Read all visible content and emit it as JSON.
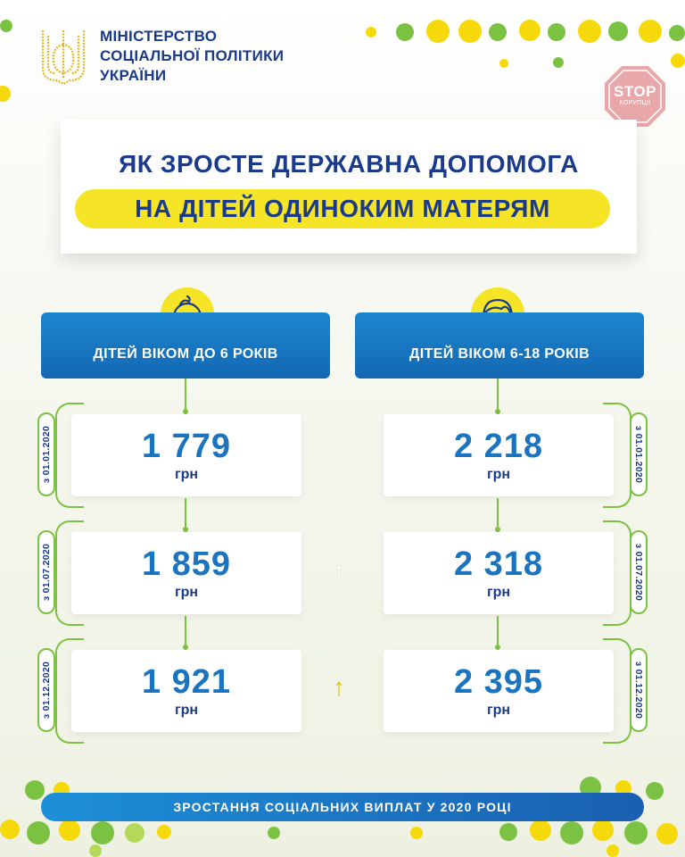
{
  "header": {
    "ministry_line1": "МІНІСТЕРСТВО",
    "ministry_line2": "СОЦІАЛЬНОЇ ПОЛІТИКИ",
    "ministry_line3": "УКРАЇНИ",
    "stop_line1": "STOP",
    "stop_line2": "КОРУПЦІЇ"
  },
  "title": {
    "line1": "ЯК ЗРОСТЕ ДЕРЖАВНА ДОПОМОГА",
    "line2": "НА ДІТЕЙ ОДИНОКИМ МАТЕРЯМ"
  },
  "columns": [
    {
      "label": "ДІТЕЙ ВІКОМ ДО 6 РОКІВ",
      "icon": "baby-face-icon",
      "amounts": [
        {
          "value": "1 779",
          "unit": "грн",
          "date": "з 01.01.2020"
        },
        {
          "value": "1 859",
          "unit": "грн",
          "date": "з 01.07.2020"
        },
        {
          "value": "1 921",
          "unit": "грн",
          "date": "з 01.12.2020"
        }
      ]
    },
    {
      "label": "ДІТЕЙ ВІКОМ 6-18 РОКІВ",
      "icon": "child-face-icon",
      "amounts": [
        {
          "value": "2 218",
          "unit": "грн",
          "date": "з 01.01.2020"
        },
        {
          "value": "2 318",
          "unit": "грн",
          "date": "з 01.07.2020"
        },
        {
          "value": "2 395",
          "unit": "грн",
          "date": "з 01.12.2020"
        }
      ]
    }
  ],
  "arrows": [
    {
      "glyph": "↑",
      "color": "#ffffff"
    },
    {
      "glyph": "↑",
      "color": "#e2c20a"
    }
  ],
  "footer": {
    "text": "ЗРОСТАННЯ СОЦІАЛЬНИХ ВИПЛАТ У 2020 РОЦІ"
  },
  "colors": {
    "brand_blue": "#1a3a8c",
    "amount_blue": "#1a74c0",
    "yellow": "#f5e526",
    "green": "#7cc242"
  }
}
